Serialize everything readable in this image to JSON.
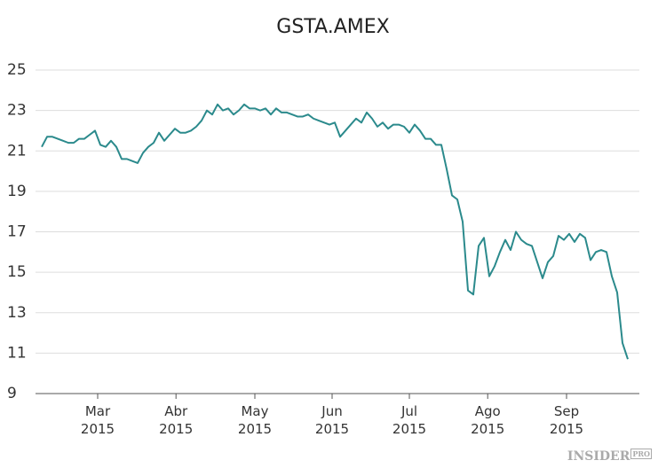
{
  "chart_data": {
    "type": "line",
    "title": "GSTA.AMEX",
    "watermark": {
      "main": "INSIDER",
      "sub": "PRO"
    },
    "series": [
      {
        "color": "#2b8a8c",
        "values": [
          21.2,
          21.7,
          21.7,
          21.6,
          21.5,
          21.4,
          21.4,
          21.6,
          21.6,
          21.8,
          22.0,
          21.3,
          21.2,
          21.5,
          21.2,
          20.6,
          20.6,
          20.5,
          20.4,
          20.9,
          21.2,
          21.4,
          21.9,
          21.5,
          21.8,
          22.1,
          21.9,
          21.9,
          22.0,
          22.2,
          22.5,
          23.0,
          22.8,
          23.3,
          23.0,
          23.1,
          22.8,
          23.0,
          23.3,
          23.1,
          23.1,
          23.0,
          23.1,
          22.8,
          23.1,
          22.9,
          22.9,
          22.8,
          22.7,
          22.7,
          22.8,
          22.6,
          22.5,
          22.4,
          22.3,
          22.4,
          21.7,
          22.0,
          22.3,
          22.6,
          22.4,
          22.9,
          22.6,
          22.2,
          22.4,
          22.1,
          22.3,
          22.3,
          22.2,
          21.9,
          22.3,
          22.0,
          21.6,
          21.6,
          21.3,
          21.3,
          20.1,
          18.8,
          18.6,
          17.5,
          14.1,
          13.9,
          16.3,
          16.7,
          14.8,
          15.3,
          16.0,
          16.6,
          16.1,
          17.0,
          16.6,
          16.4,
          16.3,
          15.5,
          14.7,
          15.5,
          15.8,
          16.8,
          16.6,
          16.9,
          16.5,
          16.9,
          16.7,
          15.6,
          16.0,
          16.1,
          16.0,
          14.8,
          14.0,
          11.5,
          10.7
        ]
      }
    ],
    "xticks": [
      {
        "value": 10.5,
        "label": "Mar\n2015"
      },
      {
        "value": 25.2,
        "label": "Abr\n2015"
      },
      {
        "value": 40,
        "label": "May\n2015"
      },
      {
        "value": 54.5,
        "label": "Jun\n2015"
      },
      {
        "value": 69,
        "label": "Jul\n2015"
      },
      {
        "value": 83.7,
        "label": "Ago\n2015"
      },
      {
        "value": 98.5,
        "label": "Sep\n2015"
      }
    ],
    "ylim": [
      9,
      25
    ],
    "yticks": [
      9,
      11,
      13,
      15,
      17,
      19,
      21,
      23,
      25
    ],
    "grid": true
  }
}
